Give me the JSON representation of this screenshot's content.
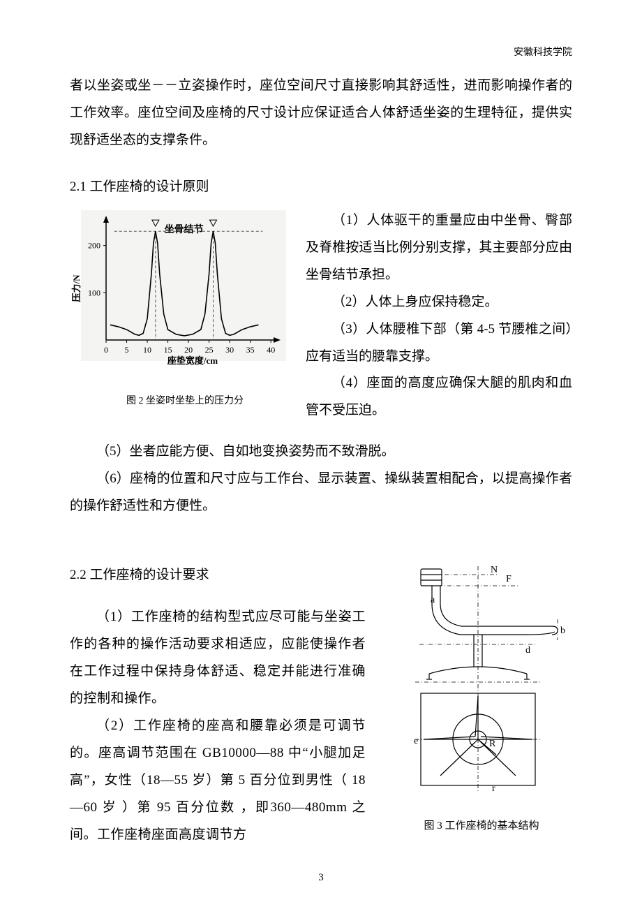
{
  "header": {
    "institution": "安徽科技学院"
  },
  "intro_continuation": "者以坐姿或坐－－立姿操作时，座位空间尺寸直接影响其舒适性，进而影响操作者的工作效率。座位空间及座椅的尺寸设计应保证适合人体舒适坐姿的生理特征，提供实现舒适坐态的支撑条件。",
  "section_2_1": {
    "heading": "2.1 工作座椅的设计原则",
    "items_right": [
      "（1）人体驱干的重量应由中坐骨、臀部及脊椎按适当比例分别支撑，其主要部分应由坐骨结节承担。",
      "（2）人体上身应保持稳定。",
      "（3）人体腰椎下部（第 4-5 节腰椎之间）应有适当的腰靠支撑。",
      "（4）座面的高度应确保大腿的肌肉和血管不受压迫。"
    ],
    "items_after": [
      "（5）坐者应能方便、自如地变换姿势而不致滑脱。",
      "（6）座椅的位置和尺寸应与工作台、显示装置、操纵装置相配合，以提高操作者的操作舒适性和方便性。"
    ]
  },
  "figure2": {
    "caption": "图 2   坐姿时坐垫上的压力分",
    "chart": {
      "type": "line",
      "title": "坐骨结节",
      "x_label": "座垫宽度/cm",
      "y_label": "压力/N",
      "x_ticks": [
        0,
        5,
        10,
        15,
        20,
        25,
        30,
        35,
        40
      ],
      "y_ticks": [
        100,
        200
      ],
      "xlim": [
        0,
        42
      ],
      "ylim": [
        0,
        260
      ],
      "background_color": "#f4f4f2",
      "axis_color": "#000000",
      "line_color": "#000000",
      "line_width": 1.6,
      "dash_color": "#555555",
      "title_fontsize": 14,
      "label_fontsize": 13,
      "tick_fontsize": 12,
      "curve_points": [
        [
          1,
          32
        ],
        [
          3,
          28
        ],
        [
          5,
          22
        ],
        [
          7,
          12
        ],
        [
          8,
          10
        ],
        [
          9,
          14
        ],
        [
          10,
          45
        ],
        [
          11,
          140
        ],
        [
          11.5,
          205
        ],
        [
          12,
          230
        ],
        [
          12.5,
          205
        ],
        [
          13,
          140
        ],
        [
          14,
          55
        ],
        [
          15,
          22
        ],
        [
          17,
          12
        ],
        [
          19,
          9
        ],
        [
          21,
          12
        ],
        [
          23,
          22
        ],
        [
          24,
          55
        ],
        [
          25,
          140
        ],
        [
          25.5,
          205
        ],
        [
          26,
          230
        ],
        [
          26.5,
          205
        ],
        [
          27,
          140
        ],
        [
          28,
          45
        ],
        [
          29,
          14
        ],
        [
          30,
          10
        ],
        [
          31,
          12
        ],
        [
          33,
          22
        ],
        [
          35,
          28
        ],
        [
          37,
          32
        ]
      ],
      "dash_y": 230,
      "dash_x1": 12,
      "dash_x2": 26,
      "marker_y": 248,
      "markers_x": [
        12,
        26
      ]
    }
  },
  "section_2_2": {
    "heading": "2.2 工作座椅的设计要求",
    "items": [
      "（1）工作座椅的结构型式应尽可能与坐姿工作的各种的操作活动要求相适应，应能使操作者在工作过程中保持身体舒适、稳定并能进行准确的控制和操作。",
      "（2）工作座椅的座高和腰靠必须是可调节的。座高调节范围在 GB10000—88 中“小腿加足高”，女性（18—55 岁）第 5 百分位到男性（ 18—60 岁 ）第 95 百分位数 ，即360—480mm 之间。工作座椅座面高度调节方"
    ]
  },
  "figure3": {
    "caption": "图 3 工作座椅的基本结构",
    "diagram": {
      "stroke": "#000000",
      "stroke_width": 1.2,
      "label_font": 14,
      "labels": {
        "N": "N",
        "F": "F",
        "a": "a",
        "b": "b",
        "d": "d",
        "R": "R",
        "r": "r",
        "e": "e"
      }
    }
  },
  "page_number": "3"
}
